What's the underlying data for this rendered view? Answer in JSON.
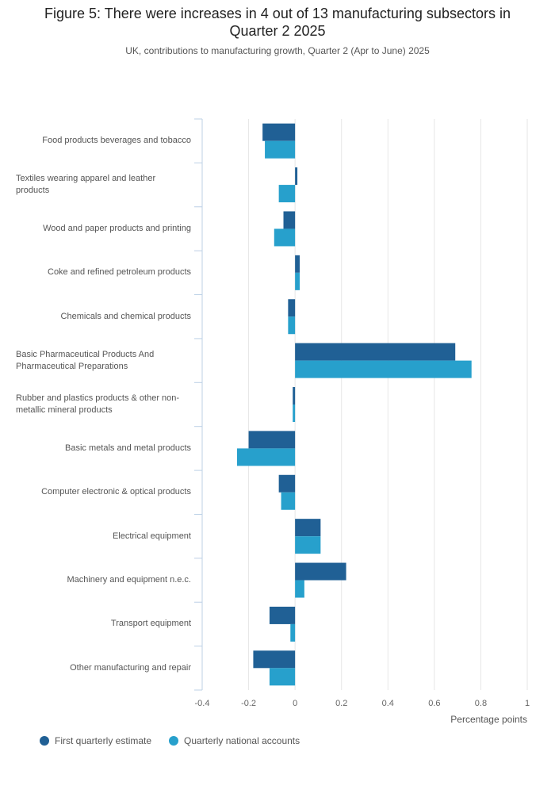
{
  "title_line1": "Figure 5: There were increases in 4 out of 13 manufacturing subsectors in",
  "title_line2": "Quarter 2 2025",
  "subtitle": "UK, contributions to manufacturing growth, Quarter 2 (Apr to June) 2025",
  "colors": {
    "series1": "#206095",
    "series2": "#27a0cc",
    "grid": "#e6e6e6",
    "axis": "#bcd0e6"
  },
  "chart_data": {
    "type": "bar",
    "orientation": "horizontal",
    "categories": [
      "Food products beverages and tobacco",
      "Textiles wearing apparel and leather products",
      "Wood and paper products and printing",
      "Coke and refined petroleum products",
      "Chemicals and chemical products",
      "Basic Pharmaceutical Products And Pharmaceutical Preparations",
      "Rubber and plastics products & other non-metallic mineral products",
      "Basic metals and metal products",
      "Computer electronic & optical products",
      "Electrical equipment",
      "Machinery and equipment n.e.c.",
      "Transport equipment",
      "Other manufacturing and repair"
    ],
    "category_lines": [
      [
        "Food products beverages and tobacco"
      ],
      [
        "Textiles wearing apparel and leather",
        "products"
      ],
      [
        "Wood and paper products and printing"
      ],
      [
        "Coke and refined petroleum products"
      ],
      [
        "Chemicals and chemical products"
      ],
      [
        "Basic Pharmaceutical Products And",
        "Pharmaceutical Preparations"
      ],
      [
        "Rubber and plastics products & other non-",
        "metallic mineral products"
      ],
      [
        "Basic metals and metal products"
      ],
      [
        "Computer electronic & optical products"
      ],
      [
        "Electrical equipment"
      ],
      [
        "Machinery and equipment n.e.c."
      ],
      [
        "Transport equipment"
      ],
      [
        "Other manufacturing and repair"
      ]
    ],
    "series": [
      {
        "name": "First quarterly estimate",
        "values": [
          -0.14,
          0.01,
          -0.05,
          0.02,
          -0.03,
          0.69,
          -0.01,
          -0.2,
          -0.07,
          0.11,
          0.22,
          -0.11,
          -0.18
        ]
      },
      {
        "name": "Quarterly national accounts",
        "values": [
          -0.13,
          -0.07,
          -0.09,
          0.02,
          -0.03,
          0.76,
          -0.01,
          -0.25,
          -0.06,
          0.11,
          0.04,
          -0.02,
          -0.11
        ]
      }
    ],
    "xlim": [
      -0.4,
      1
    ],
    "xticks": [
      -0.4,
      -0.2,
      0,
      0.2,
      0.4,
      0.6,
      0.8,
      1
    ],
    "xtick_labels": [
      "-0.4",
      "-0.2",
      "0",
      "0.2",
      "0.4",
      "0.6",
      "0.8",
      "1"
    ],
    "xlabel": "Percentage points",
    "ylabel": "",
    "grid": true,
    "legend_position": "bottom-left"
  }
}
